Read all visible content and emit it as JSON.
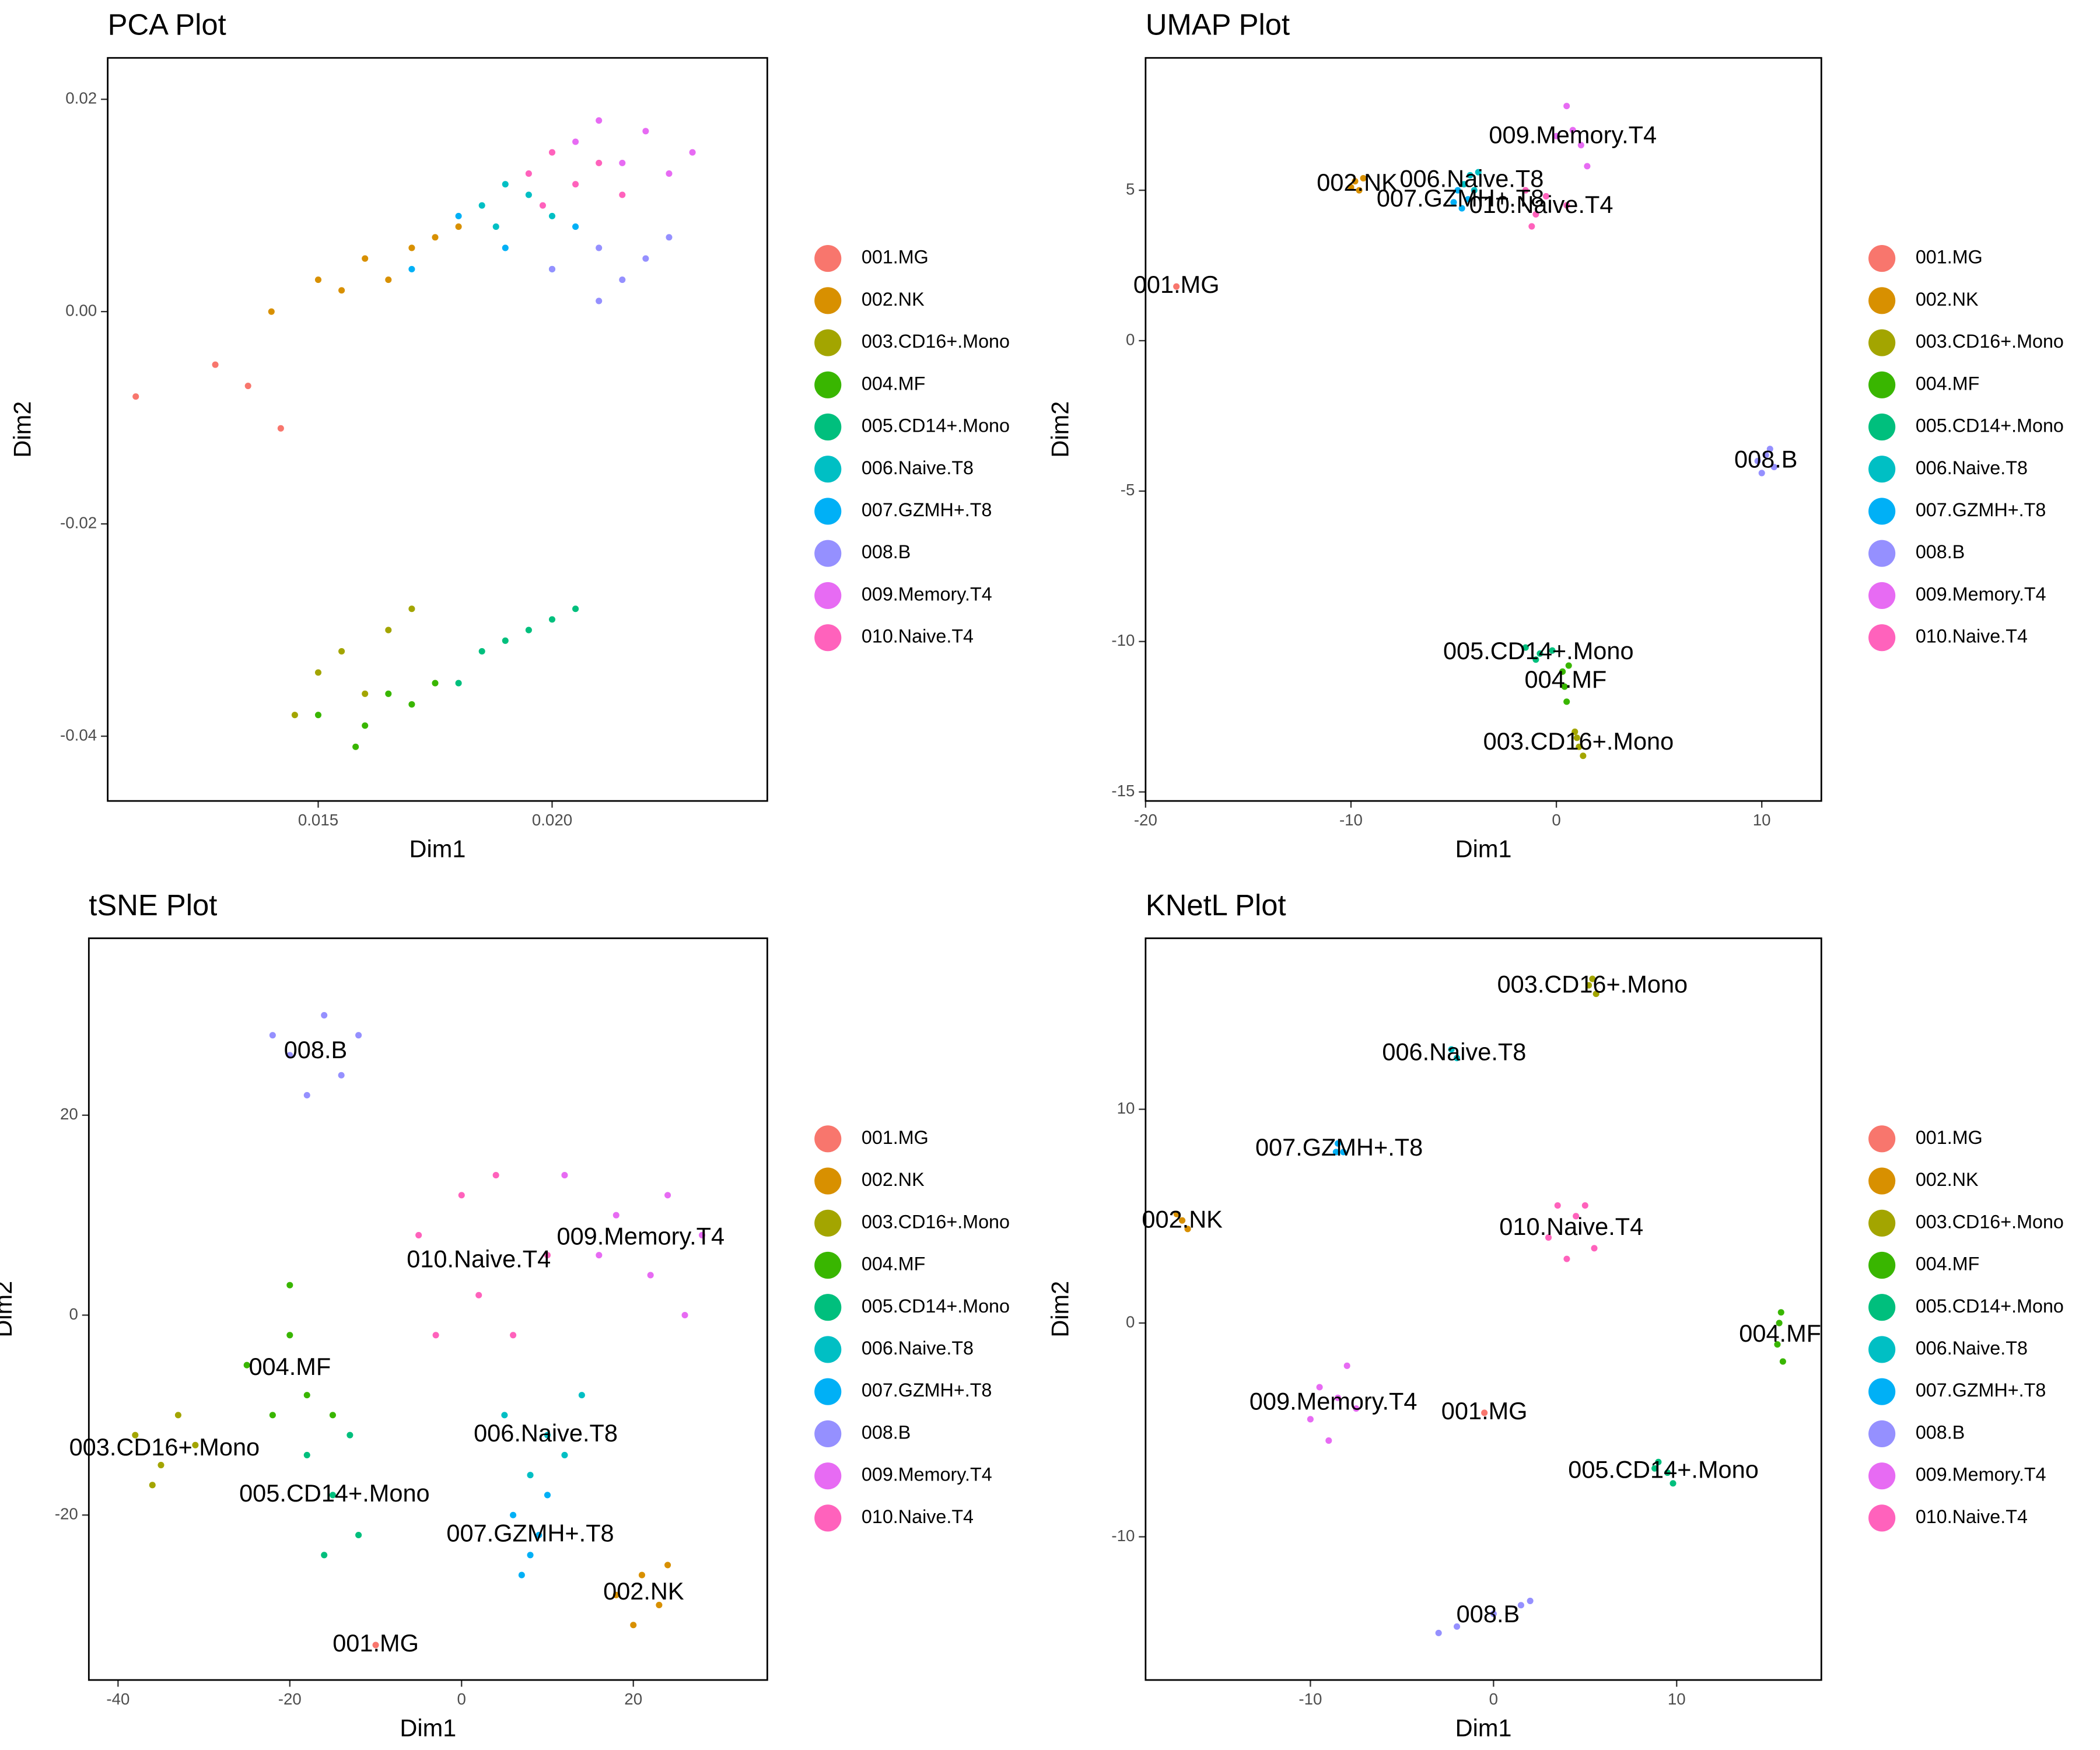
{
  "chart_data": [
    {
      "type": "scatter",
      "title": "PCA Plot",
      "xlabel": "Dim1",
      "ylabel": "Dim2",
      "cluster_labels": false,
      "xlim": [
        0.0105,
        0.0246
      ],
      "ylim": [
        -0.0461,
        0.0239
      ],
      "xticks": [
        0.015,
        {
          "value": 0.02,
          "label": "0.020"
        }
      ],
      "yticks": [
        -0.04,
        -0.02,
        {
          "value": 0,
          "label": "0.00"
        },
        0.02
      ],
      "series": [
        {
          "name": "001.MG",
          "color": "#F8766D",
          "x": [
            0.0111,
            0.0128,
            0.0135,
            0.0142
          ],
          "y": [
            -0.008,
            -0.005,
            -0.007,
            -0.011
          ]
        },
        {
          "name": "002.NK",
          "color": "#D89000",
          "x": [
            0.014,
            0.015,
            0.016,
            0.0165,
            0.017,
            0.0175,
            0.018,
            0.0155
          ],
          "y": [
            0.0,
            0.003,
            0.005,
            0.003,
            0.006,
            0.007,
            0.008,
            0.002
          ]
        },
        {
          "name": "003.CD16+.Mono",
          "color": "#A3A500",
          "x": [
            0.015,
            0.0155,
            0.016,
            0.0165,
            0.0145,
            0.017
          ],
          "y": [
            -0.034,
            -0.032,
            -0.036,
            -0.03,
            -0.038,
            -0.028
          ]
        },
        {
          "name": "004.MF",
          "color": "#39B600",
          "x": [
            0.015,
            0.016,
            0.0165,
            0.017,
            0.0175,
            0.0158
          ],
          "y": [
            -0.038,
            -0.039,
            -0.036,
            -0.037,
            -0.035,
            -0.041
          ]
        },
        {
          "name": "005.CD14+.Mono",
          "color": "#00BF7D",
          "x": [
            0.018,
            0.0185,
            0.019,
            0.0195,
            0.02,
            0.0205
          ],
          "y": [
            -0.035,
            -0.032,
            -0.031,
            -0.03,
            -0.029,
            -0.028
          ]
        },
        {
          "name": "006.Naive.T8",
          "color": "#00BFC4",
          "x": [
            0.0185,
            0.019,
            0.0195,
            0.02,
            0.0188
          ],
          "y": [
            0.01,
            0.012,
            0.011,
            0.009,
            0.008
          ]
        },
        {
          "name": "007.GZMH+.T8",
          "color": "#00B0F6",
          "x": [
            0.017,
            0.018,
            0.019,
            0.02,
            0.0205
          ],
          "y": [
            0.004,
            0.009,
            0.006,
            0.004,
            0.008
          ]
        },
        {
          "name": "008.B",
          "color": "#9590FF",
          "x": [
            0.02,
            0.021,
            0.0215,
            0.022,
            0.0225,
            0.021
          ],
          "y": [
            0.004,
            0.006,
            0.003,
            0.005,
            0.007,
            0.001
          ]
        },
        {
          "name": "009.Memory.T4",
          "color": "#E76BF3",
          "x": [
            0.0205,
            0.021,
            0.0215,
            0.022,
            0.0225,
            0.023
          ],
          "y": [
            0.016,
            0.018,
            0.014,
            0.017,
            0.013,
            0.015
          ]
        },
        {
          "name": "010.Naive.T4",
          "color": "#FF62BC",
          "x": [
            0.0195,
            0.02,
            0.0205,
            0.021,
            0.0198,
            0.0215
          ],
          "y": [
            0.013,
            0.015,
            0.012,
            0.014,
            0.01,
            0.011
          ]
        }
      ]
    },
    {
      "type": "scatter",
      "title": "UMAP Plot",
      "xlabel": "Dim1",
      "ylabel": "Dim2",
      "cluster_labels": true,
      "xlim": [
        -20,
        12.9
      ],
      "ylim": [
        -15.3,
        9.4
      ],
      "xticks": [
        -20,
        -10,
        0,
        10
      ],
      "yticks": [
        -15,
        -10,
        -5,
        0,
        5
      ],
      "series": [
        {
          "name": "001.MG",
          "color": "#F8766D",
          "x": [
            -18.5
          ],
          "y": [
            1.8
          ]
        },
        {
          "name": "002.NK",
          "color": "#D89000",
          "x": [
            -9.8,
            -9.6,
            -10.0,
            -9.4
          ],
          "y": [
            5.3,
            5.0,
            5.1,
            5.4
          ]
        },
        {
          "name": "003.CD16+.Mono",
          "color": "#A3A500",
          "x": [
            0.9,
            1.1,
            1.3,
            1.0
          ],
          "y": [
            -13.0,
            -13.5,
            -13.8,
            -13.2
          ]
        },
        {
          "name": "004.MF",
          "color": "#39B600",
          "x": [
            0.3,
            0.4,
            0.5,
            0.6
          ],
          "y": [
            -11.0,
            -11.5,
            -12.0,
            -10.8
          ]
        },
        {
          "name": "005.CD14+.Mono",
          "color": "#00BF7D",
          "x": [
            -1.5,
            -0.8,
            -0.2,
            -1.0
          ],
          "y": [
            -10.2,
            -10.4,
            -10.3,
            -10.6
          ]
        },
        {
          "name": "006.Naive.T8",
          "color": "#00BFC4",
          "x": [
            -4.2,
            -4.0,
            -4.5,
            -3.8
          ],
          "y": [
            5.5,
            5.0,
            5.2,
            5.6
          ]
        },
        {
          "name": "007.GZMH+.T8",
          "color": "#00B0F6",
          "x": [
            -5.0,
            -4.6,
            -4.8,
            -4.3
          ],
          "y": [
            4.6,
            4.4,
            5.0,
            4.7
          ]
        },
        {
          "name": "008.B",
          "color": "#9590FF",
          "x": [
            9.8,
            10.2,
            10.6,
            10.4,
            10.0
          ],
          "y": [
            -4.0,
            -3.8,
            -4.2,
            -3.6,
            -4.4
          ]
        },
        {
          "name": "009.Memory.T4",
          "color": "#E76BF3",
          "x": [
            0.5,
            0.8,
            1.2,
            0,
            1.5
          ],
          "y": [
            7.8,
            7.0,
            6.5,
            6.8,
            5.8
          ]
        },
        {
          "name": "010.Naive.T4",
          "color": "#FF62BC",
          "x": [
            -1.5,
            -1.0,
            -0.5,
            -1.2,
            0.5
          ],
          "y": [
            5.0,
            4.2,
            4.8,
            3.8,
            4.5
          ]
        }
      ]
    },
    {
      "type": "scatter",
      "title": "tSNE Plot",
      "xlabel": "Dim1",
      "ylabel": "Dim2",
      "cluster_labels": true,
      "xlim": [
        -43.4,
        35.6
      ],
      "ylim": [
        -36.5,
        37.7
      ],
      "xticks": [
        -40,
        -20,
        0,
        20
      ],
      "yticks": [
        -20,
        0,
        20
      ],
      "series": [
        {
          "name": "001.MG",
          "color": "#F8766D",
          "x": [
            -10
          ],
          "y": [
            -33
          ]
        },
        {
          "name": "002.NK",
          "color": "#D89000",
          "x": [
            18,
            21,
            23,
            20,
            24
          ],
          "y": [
            -28,
            -26,
            -29,
            -31,
            -25
          ]
        },
        {
          "name": "003.CD16+.Mono",
          "color": "#A3A500",
          "x": [
            -38,
            -35,
            -33,
            -36,
            -31
          ],
          "y": [
            -12,
            -15,
            -10,
            -17,
            -13
          ]
        },
        {
          "name": "004.MF",
          "color": "#39B600",
          "x": [
            -25,
            -20,
            -18,
            -22,
            -20,
            -15
          ],
          "y": [
            -5,
            -2,
            -8,
            -10,
            3,
            -10
          ]
        },
        {
          "name": "005.CD14+.Mono",
          "color": "#00BF7D",
          "x": [
            -18,
            -15,
            -12,
            -16,
            -13
          ],
          "y": [
            -14,
            -18,
            -22,
            -24,
            -12
          ]
        },
        {
          "name": "006.Naive.T8",
          "color": "#00BFC4",
          "x": [
            5,
            10,
            14,
            8,
            12
          ],
          "y": [
            -10,
            -12,
            -8,
            -16,
            -14
          ]
        },
        {
          "name": "007.GZMH+.T8",
          "color": "#00B0F6",
          "x": [
            6,
            9,
            7,
            10,
            8
          ],
          "y": [
            -20,
            -22,
            -26,
            -18,
            -24
          ]
        },
        {
          "name": "008.B",
          "color": "#9590FF",
          "x": [
            -22,
            -16,
            -14,
            -18,
            -12,
            -20
          ],
          "y": [
            28,
            30,
            24,
            22,
            28,
            26
          ]
        },
        {
          "name": "009.Memory.T4",
          "color": "#E76BF3",
          "x": [
            12,
            18,
            24,
            28,
            22,
            26,
            16
          ],
          "y": [
            14,
            10,
            12,
            8,
            4,
            0,
            6
          ]
        },
        {
          "name": "010.Naive.T4",
          "color": "#FF62BC",
          "x": [
            -5,
            0,
            2,
            6,
            -3,
            4,
            10
          ],
          "y": [
            8,
            12,
            2,
            -2,
            -2,
            14,
            6
          ]
        }
      ]
    },
    {
      "type": "scatter",
      "title": "KNetL Plot",
      "xlabel": "Dim1",
      "ylabel": "Dim2",
      "cluster_labels": true,
      "xlim": [
        -19.0,
        17.9
      ],
      "ylim": [
        -16.7,
        18.0
      ],
      "xticks": [
        -10,
        0,
        10
      ],
      "yticks": [
        -10,
        0,
        10
      ],
      "series": [
        {
          "name": "001.MG",
          "color": "#F8766D",
          "x": [
            -0.5
          ],
          "y": [
            -4.2
          ]
        },
        {
          "name": "002.NK",
          "color": "#D89000",
          "x": [
            -17,
            -17.3,
            -16.7
          ],
          "y": [
            4.8,
            5.1,
            4.4
          ]
        },
        {
          "name": "003.CD16+.Mono",
          "color": "#A3A500",
          "x": [
            5.2,
            5.6,
            5.4
          ],
          "y": [
            15.8,
            15.4,
            16.1
          ]
        },
        {
          "name": "004.MF",
          "color": "#39B600",
          "x": [
            15.7,
            15.5,
            15.8,
            15.6
          ],
          "y": [
            0.5,
            -1.0,
            -1.8,
            0.0
          ]
        },
        {
          "name": "005.CD14+.Mono",
          "color": "#00BF7D",
          "x": [
            9,
            9.5,
            9.8,
            8.8
          ],
          "y": [
            -6.5,
            -7.0,
            -7.5,
            -6.8
          ]
        },
        {
          "name": "006.Naive.T8",
          "color": "#00BFC4",
          "x": [
            -2.3,
            -2.0
          ],
          "y": [
            12.8,
            12.4
          ]
        },
        {
          "name": "007.GZMH+.T8",
          "color": "#00B0F6",
          "x": [
            -8.5,
            -8.2,
            -8.6
          ],
          "y": [
            8.4,
            8.0,
            8.0
          ]
        },
        {
          "name": "008.B",
          "color": "#9590FF",
          "x": [
            -3,
            -2,
            0,
            1.5,
            2
          ],
          "y": [
            -14.5,
            -14.2,
            -13.6,
            -13.2,
            -13.0
          ]
        },
        {
          "name": "009.Memory.T4",
          "color": "#E76BF3",
          "x": [
            -9.5,
            -8,
            -7.5,
            -9,
            -8.5,
            -10
          ],
          "y": [
            -3,
            -2,
            -4,
            -5.5,
            -3.5,
            -4.5
          ]
        },
        {
          "name": "010.Naive.T4",
          "color": "#FF62BC",
          "x": [
            3,
            5,
            5.5,
            4,
            4.5,
            3.5
          ],
          "y": [
            4,
            5.5,
            3.5,
            3,
            5.0,
            5.5
          ]
        }
      ]
    }
  ]
}
